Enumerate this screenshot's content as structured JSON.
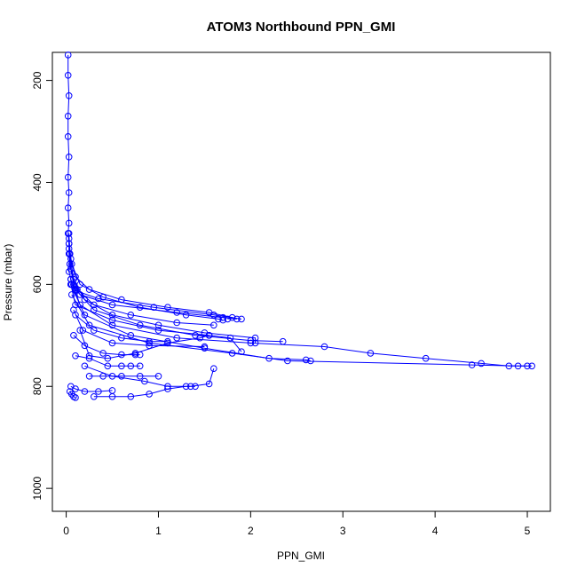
{
  "chart_data": {
    "type": "scatter",
    "title": "ATOM3 Northbound PPN_GMI",
    "xlabel": "PPN_GMI",
    "ylabel": "Pressure (mbar)",
    "xlim": [
      -0.15,
      5.25
    ],
    "ylim": [
      1045,
      145
    ],
    "y_reversed": true,
    "xticks": [
      0,
      1,
      2,
      3,
      4,
      5
    ],
    "yticks": [
      200,
      400,
      600,
      800,
      1000
    ],
    "grid": false,
    "legend": "none",
    "color": "#0000ff",
    "marker": "open-circle",
    "connected_lines": true,
    "series": [
      {
        "x": [
          0.02,
          0.02,
          0.03,
          0.02,
          0.02,
          0.03,
          0.02,
          0.03,
          0.02,
          0.03,
          0.02,
          0.03,
          0.03,
          0.04,
          0.03,
          0.05,
          0.06,
          0.1,
          0.35,
          0.95,
          1.6,
          1.9
        ],
        "y": [
          150,
          190,
          230,
          270,
          310,
          350,
          390,
          420,
          450,
          480,
          500,
          520,
          540,
          560,
          575,
          590,
          600,
          612,
          628,
          645,
          660,
          668
        ]
      },
      {
        "x": [
          0.03,
          0.04,
          0.05,
          0.08,
          0.15,
          0.5,
          1.2,
          1.7,
          1.85
        ],
        "y": [
          500,
          540,
          570,
          600,
          620,
          640,
          655,
          665,
          668
        ]
      },
      {
        "x": [
          0.03,
          0.05,
          0.1,
          0.25,
          0.6,
          1.1,
          1.55,
          1.8,
          1.75
        ],
        "y": [
          510,
          550,
          585,
          610,
          630,
          645,
          655,
          665,
          668
        ]
      },
      {
        "x": [
          0.03,
          0.06,
          0.15,
          0.4,
          0.8,
          1.3,
          1.65,
          1.7
        ],
        "y": [
          520,
          560,
          600,
          625,
          645,
          660,
          668,
          670
        ]
      },
      {
        "x": [
          0.03,
          0.05,
          0.12,
          0.3,
          0.7,
          1.2,
          1.6
        ],
        "y": [
          530,
          570,
          610,
          640,
          660,
          675,
          680
        ]
      },
      {
        "x": [
          0.04,
          0.08,
          0.2,
          0.5,
          1.0,
          1.5,
          2.05,
          2.05
        ],
        "y": [
          540,
          590,
          630,
          660,
          680,
          695,
          705,
          715
        ]
      },
      {
        "x": [
          0.04,
          0.1,
          0.3,
          0.8,
          1.4,
          2.0,
          2.35
        ],
        "y": [
          560,
          610,
          650,
          680,
          700,
          710,
          712
        ]
      },
      {
        "x": [
          0.05,
          0.15,
          0.5,
          1.2,
          2.0,
          2.8,
          3.3,
          3.9,
          4.5,
          4.8,
          5.05
        ],
        "y": [
          590,
          640,
          680,
          705,
          715,
          722,
          735,
          745,
          755,
          760,
          760
        ]
      },
      {
        "x": [
          0.05,
          0.2,
          0.7,
          1.5,
          2.2,
          2.6,
          2.65
        ],
        "y": [
          600,
          660,
          700,
          725,
          745,
          748,
          750
        ]
      },
      {
        "x": [
          0.06,
          0.25,
          0.9,
          1.8,
          2.4,
          4.4,
          4.9,
          5.0
        ],
        "y": [
          620,
          680,
          715,
          735,
          750,
          758,
          760,
          760
        ]
      },
      {
        "x": [
          0.05,
          0.1,
          0.5,
          1.0,
          1.55,
          1.78,
          1.9
        ],
        "y": [
          600,
          640,
          670,
          690,
          700,
          705,
          732
        ]
      },
      {
        "x": [
          0.08,
          0.18,
          0.5,
          0.9,
          1.5
        ],
        "y": [
          650,
          690,
          715,
          720,
          722
        ]
      },
      {
        "x": [
          0.1,
          0.3,
          0.6,
          0.9,
          1.1
        ],
        "y": [
          660,
          690,
          705,
          712,
          712
        ]
      },
      {
        "x": [
          0.08,
          0.2,
          0.4,
          0.6,
          0.75,
          0.8
        ],
        "y": [
          700,
          720,
          735,
          738,
          738,
          738
        ]
      },
      {
        "x": [
          0.1,
          0.25,
          0.45,
          0.6,
          0.7,
          0.8
        ],
        "y": [
          740,
          745,
          760,
          760,
          760,
          760
        ]
      },
      {
        "x": [
          0.15,
          0.25,
          0.45,
          0.75,
          1.1,
          1.45,
          1.55
        ],
        "y": [
          690,
          740,
          745,
          735,
          715,
          705,
          700
        ]
      },
      {
        "x": [
          0.2,
          0.5,
          0.85,
          1.1,
          1.35,
          1.55,
          1.6
        ],
        "y": [
          760,
          780,
          790,
          800,
          800,
          795,
          765
        ]
      },
      {
        "x": [
          0.3,
          0.5,
          0.7,
          0.9,
          1.1,
          1.3,
          1.4
        ],
        "y": [
          820,
          820,
          820,
          815,
          805,
          800,
          800
        ]
      },
      {
        "x": [
          0.25,
          0.4,
          0.6,
          0.8,
          1.0
        ],
        "y": [
          780,
          780,
          780,
          780,
          780
        ]
      },
      {
        "x": [
          0.05,
          0.1,
          0.2,
          0.35,
          0.5
        ],
        "y": [
          800,
          805,
          810,
          810,
          808
        ]
      },
      {
        "x": [
          0.04,
          0.06,
          0.08,
          0.1
        ],
        "y": [
          810,
          815,
          820,
          822
        ]
      }
    ]
  }
}
